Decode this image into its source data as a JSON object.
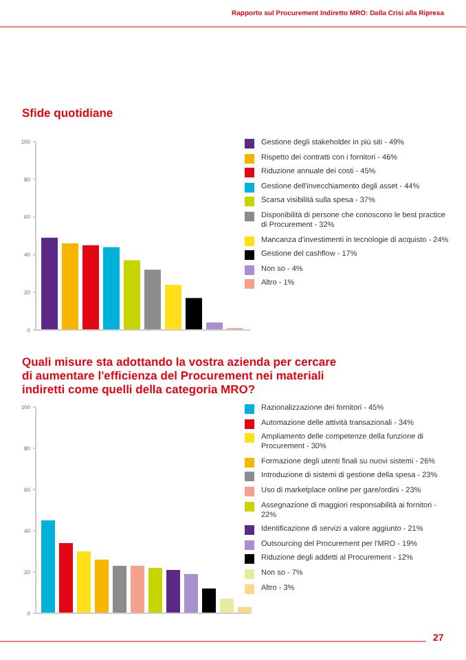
{
  "chart_data": [
    {
      "type": "bar",
      "title": "Sfide quotidiane",
      "annotations": [
        "Rapporto sul Procurement Indiretto MRO: Dalla Crisi alla Ripresa"
      ],
      "categories": [
        null
      ],
      "series": [
        {
          "name": "Gestione degli stakeholder in più siti - 49%",
          "color": "#5b2a86",
          "values": [
            49
          ]
        },
        {
          "name": "Rispetto dei contratti con i fornitori - 46%",
          "color": "#f7b500",
          "values": [
            46
          ]
        },
        {
          "name": "Riduzione annuale dei costi - 45%",
          "color": "#e30613",
          "values": [
            45
          ]
        },
        {
          "name": "Gestione dell'invecchiamento degli asset - 44%",
          "color": "#00b2d9",
          "values": [
            44
          ]
        },
        {
          "name": "Scarsa visibilità sulla spesa - 37%",
          "color": "#c8d400",
          "values": [
            37
          ]
        },
        {
          "name": "Disponibilità di persone che conoscono le best practice di Procurement - 32%",
          "color": "#8c8c8c",
          "values": [
            32
          ]
        },
        {
          "name": "Mancanza d'investimenti in tecnologie di acquisto - 24%",
          "color": "#ffe01b",
          "values": [
            24
          ]
        },
        {
          "name": "Gestione del cashflow - 17%",
          "color": "#000000",
          "values": [
            17
          ]
        },
        {
          "name": "Non so - 4%",
          "color": "#a98fcf",
          "values": [
            4
          ]
        },
        {
          "name": "Altro - 1%",
          "color": "#f4a28c",
          "values": [
            1
          ]
        }
      ],
      "ylim": [
        0,
        100
      ],
      "yticks": [
        0,
        20,
        40,
        60,
        80,
        100
      ],
      "grid": false,
      "legend": "right",
      "tick_labels": "y"
    },
    {
      "type": "bar",
      "title": "Quali misure sta adottando la vostra azienda per cercare di aumentare l'efficienza del Procurement nei materiali indiretti come quelli della categoria MRO?",
      "annotations": [
        "27"
      ],
      "categories": [
        null
      ],
      "series": [
        {
          "name": "Razionalizzazione dei fornitori - 45%",
          "color": "#00b2d9",
          "values": [
            45
          ]
        },
        {
          "name": "Automazione delle attività transazionali - 34%",
          "color": "#e30613",
          "values": [
            34
          ]
        },
        {
          "name": "Ampliamento delle competenze della funzione di Procurement - 30%",
          "color": "#ffe01b",
          "values": [
            30
          ]
        },
        {
          "name": "Formazione degli utenti finali su nuovi sistemi - 26%",
          "color": "#f7b500",
          "values": [
            26
          ]
        },
        {
          "name": "Introduzione di sistemi di gestione della spesa - 23%",
          "color": "#8c8c8c",
          "values": [
            23
          ]
        },
        {
          "name": "Uso di marketplace online per gare/ordini - 23%",
          "color": "#f4a28c",
          "values": [
            23
          ]
        },
        {
          "name": "Assegnazione di maggiori responsabilità ai fornitori - 22%",
          "color": "#c8d400",
          "values": [
            22
          ]
        },
        {
          "name": "Identificazione di servizi a valore aggiunto - 21%",
          "color": "#5b2a86",
          "values": [
            21
          ]
        },
        {
          "name": "Outsourcing del Procurement per l'MRO - 19%",
          "color": "#a98fcf",
          "values": [
            19
          ]
        },
        {
          "name": "Riduzione degli addetti al Procurement - 12%",
          "color": "#000000",
          "values": [
            12
          ]
        },
        {
          "name": "Non so - 7%",
          "color": "#e6eba0",
          "values": [
            7
          ]
        },
        {
          "name": "Altro - 3%",
          "color": "#fcd88a",
          "values": [
            3
          ]
        }
      ],
      "ylim": [
        0,
        100
      ],
      "yticks": [
        0,
        20,
        40,
        60,
        80,
        100
      ],
      "grid": false,
      "legend": "right",
      "tick_labels": "y"
    }
  ]
}
